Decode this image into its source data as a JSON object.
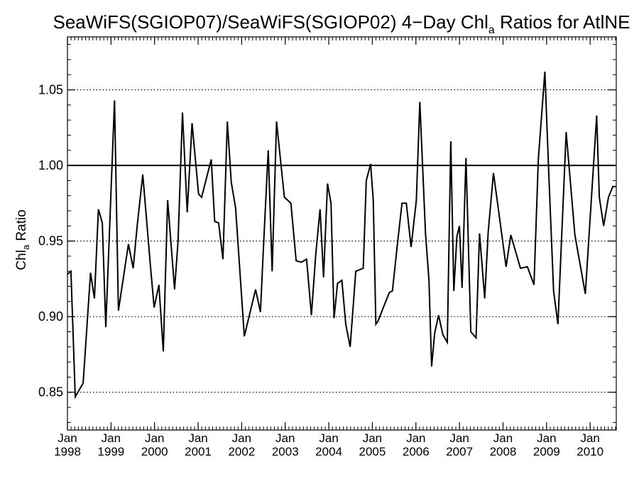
{
  "chart_data": {
    "type": "line",
    "title": {
      "pre": "SeaWiFS(SGIOP07)/SeaWiFS(SGIOP02) 4−Day Chl",
      "sub": "a",
      "post": " Ratios for AtlNE"
    },
    "ylabel": {
      "pre": "Chl",
      "sub": "a",
      "post": " Ratio"
    },
    "xlabel": "",
    "xlim": [
      1998.0,
      2010.6
    ],
    "ylim": [
      0.825,
      1.085
    ],
    "yticks": [
      {
        "value": 0.85,
        "label": "0.85"
      },
      {
        "value": 0.9,
        "label": "0.90"
      },
      {
        "value": 0.95,
        "label": "0.95"
      },
      {
        "value": 1.0,
        "label": "1.00"
      },
      {
        "value": 1.05,
        "label": "1.05"
      }
    ],
    "xticks": [
      {
        "value": 1998,
        "month": "Jan",
        "year": "1998"
      },
      {
        "value": 1999,
        "month": "Jan",
        "year": "1999"
      },
      {
        "value": 2000,
        "month": "Jan",
        "year": "2000"
      },
      {
        "value": 2001,
        "month": "Jan",
        "year": "2001"
      },
      {
        "value": 2002,
        "month": "Jan",
        "year": "2002"
      },
      {
        "value": 2003,
        "month": "Jan",
        "year": "2003"
      },
      {
        "value": 2004,
        "month": "Jan",
        "year": "2004"
      },
      {
        "value": 2005,
        "month": "Jan",
        "year": "2005"
      },
      {
        "value": 2006,
        "month": "Jan",
        "year": "2006"
      },
      {
        "value": 2007,
        "month": "Jan",
        "year": "2007"
      },
      {
        "value": 2008,
        "month": "Jan",
        "year": "2008"
      },
      {
        "value": 2009,
        "month": "Jan",
        "year": "2009"
      },
      {
        "value": 2010,
        "month": "Jan",
        "year": "2010"
      }
    ],
    "dotted_gridlines": [
      0.85,
      0.9,
      0.95,
      1.05
    ],
    "reference_line": 1.0,
    "series": [
      {
        "x": [
          1998.0,
          1998.08,
          1998.18,
          1998.36,
          1998.53,
          1998.62,
          1998.71,
          1998.8,
          1998.88,
          1999.08,
          1999.17,
          1999.4,
          1999.51,
          1999.6,
          1999.73,
          1999.9,
          1999.99,
          2000.1,
          2000.2,
          2000.3,
          2000.46,
          2000.54,
          2000.64,
          2000.75,
          2000.86,
          2001.01,
          2001.08,
          2001.3,
          2001.38,
          2001.47,
          2001.57,
          2001.67,
          2001.76,
          2001.86,
          2002.06,
          2002.32,
          2002.43,
          2002.51,
          2002.61,
          2002.7,
          2002.8,
          2002.98,
          2003.13,
          2003.25,
          2003.37,
          2003.49,
          2003.6,
          2003.7,
          2003.8,
          2003.88,
          2003.97,
          2004.05,
          2004.12,
          2004.2,
          2004.3,
          2004.39,
          2004.49,
          2004.62,
          2004.79,
          2004.86,
          2004.96,
          2005.02,
          2005.08,
          2005.13,
          2005.28,
          2005.39,
          2005.46,
          2005.58,
          2005.68,
          2005.78,
          2005.89,
          2006.01,
          2006.09,
          2006.22,
          2006.3,
          2006.36,
          2006.43,
          2006.52,
          2006.62,
          2006.72,
          2006.8,
          2006.87,
          2006.94,
          2007.0,
          2007.06,
          2007.15,
          2007.26,
          2007.38,
          2007.46,
          2007.58,
          2007.66,
          2007.78,
          2007.88,
          2008.07,
          2008.18,
          2008.4,
          2008.56,
          2008.71,
          2008.81,
          2008.96,
          2009.06,
          2009.16,
          2009.26,
          2009.45,
          2009.65,
          2009.89,
          2010.15,
          2010.21,
          2010.31,
          2010.42,
          2010.52,
          2010.6
        ],
        "values": [
          0.928,
          0.93,
          0.847,
          0.856,
          0.929,
          0.912,
          0.971,
          0.962,
          0.893,
          1.043,
          0.904,
          0.948,
          0.932,
          0.96,
          0.994,
          0.935,
          0.906,
          0.921,
          0.877,
          0.977,
          0.918,
          0.95,
          1.035,
          0.969,
          1.028,
          0.981,
          0.979,
          1.004,
          0.963,
          0.962,
          0.938,
          1.029,
          0.989,
          0.972,
          0.887,
          0.918,
          0.903,
          0.952,
          1.01,
          0.93,
          1.029,
          0.979,
          0.975,
          0.937,
          0.936,
          0.938,
          0.901,
          0.941,
          0.971,
          0.926,
          0.988,
          0.975,
          0.899,
          0.922,
          0.924,
          0.895,
          0.88,
          0.93,
          0.932,
          0.99,
          1.001,
          0.977,
          0.895,
          0.897,
          0.908,
          0.916,
          0.917,
          0.949,
          0.975,
          0.975,
          0.946,
          0.977,
          1.042,
          0.955,
          0.924,
          0.867,
          0.889,
          0.901,
          0.888,
          0.883,
          1.016,
          0.917,
          0.953,
          0.96,
          0.919,
          1.005,
          0.89,
          0.886,
          0.955,
          0.912,
          0.956,
          0.995,
          0.974,
          0.933,
          0.954,
          0.932,
          0.933,
          0.921,
          1.004,
          1.062,
          0.988,
          0.917,
          0.895,
          1.022,
          0.954,
          0.915,
          1.033,
          0.979,
          0.96,
          0.979,
          0.986,
          0.986
        ]
      }
    ]
  }
}
